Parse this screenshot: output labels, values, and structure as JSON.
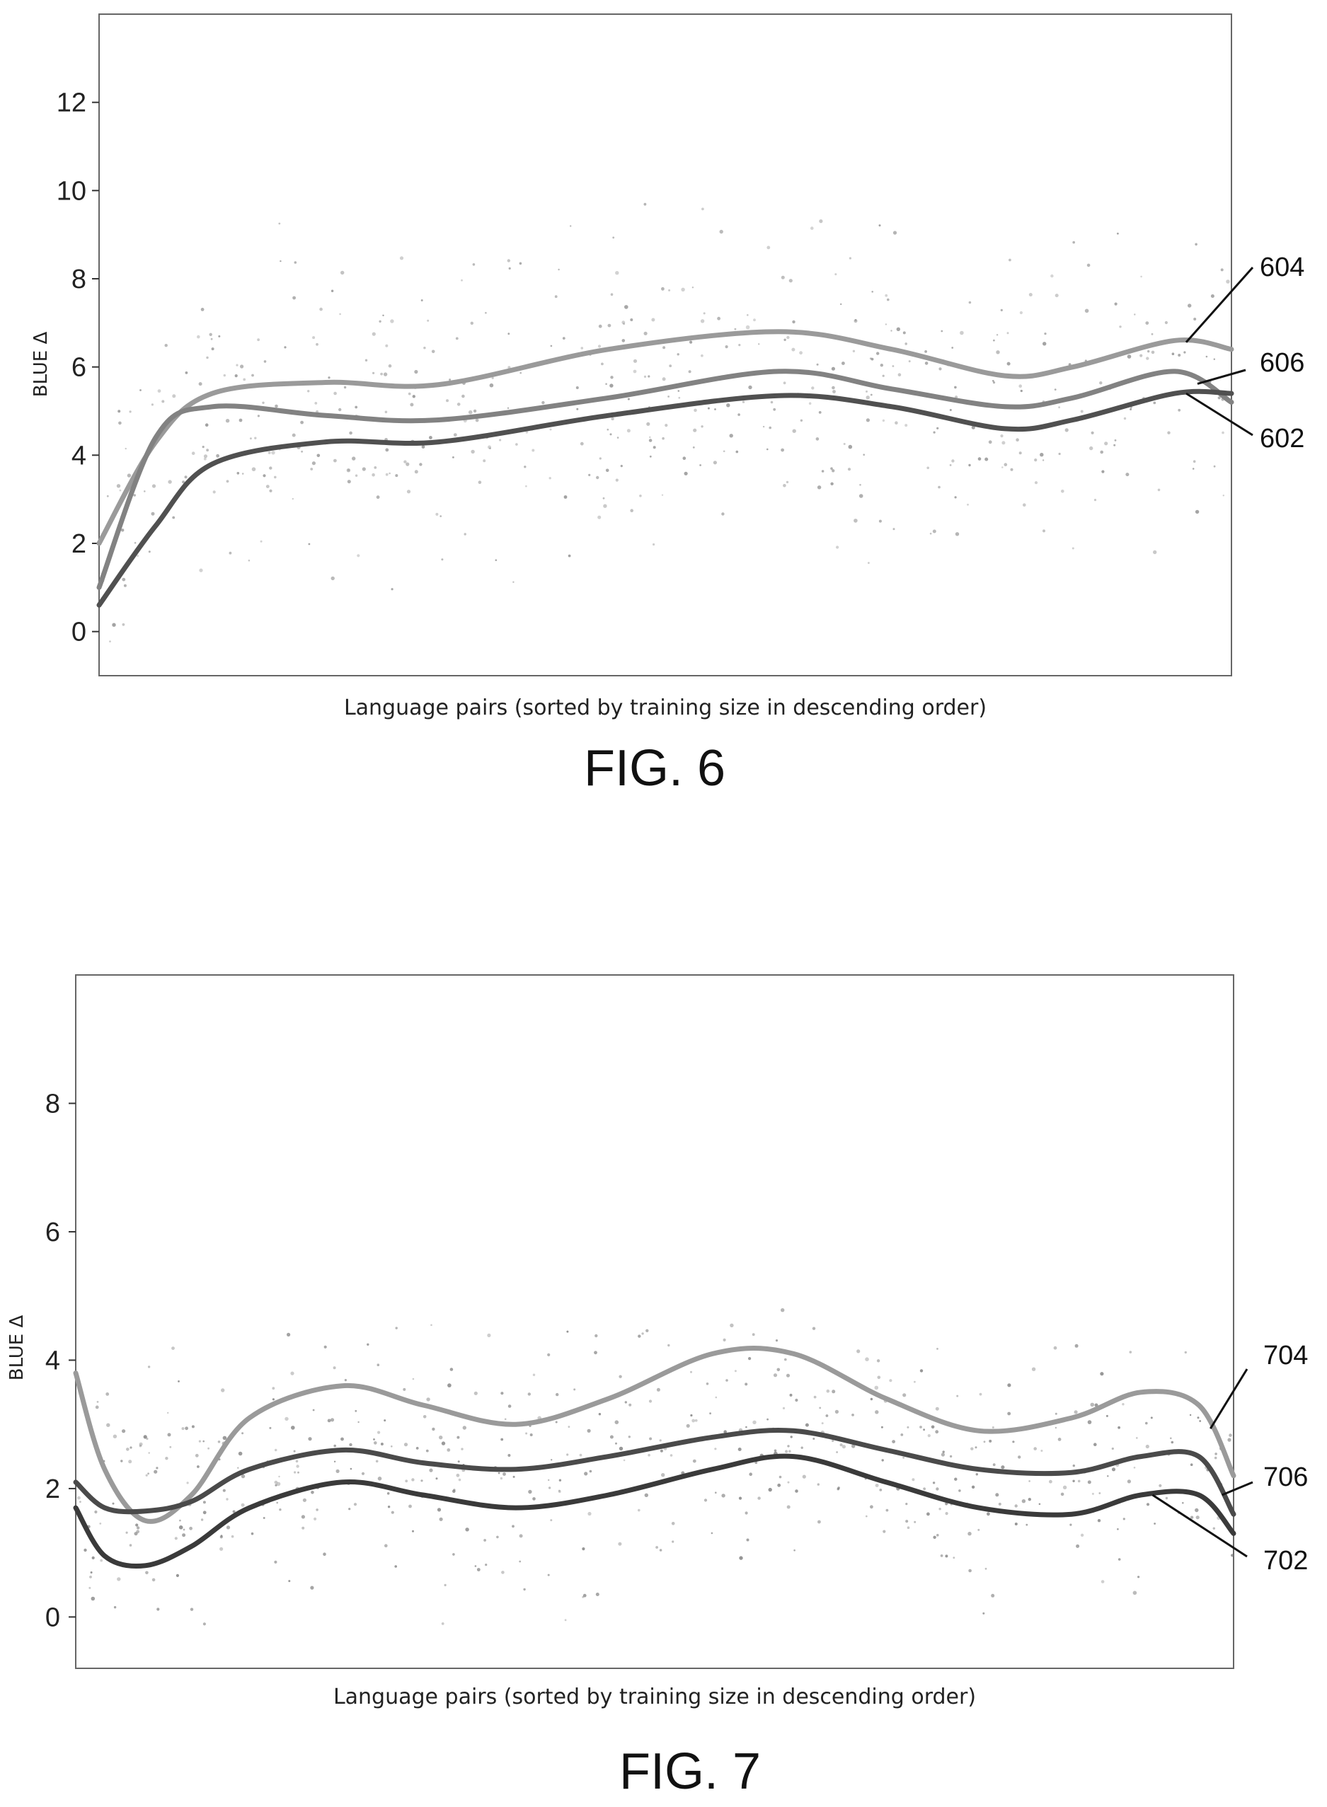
{
  "chart_data": [
    {
      "type": "scatter",
      "figure_label": "FIG. 6",
      "title": "",
      "xlabel": "Language pairs (sorted by training size in descending order)",
      "ylabel": "BLUE Δ",
      "ylim": [
        -1,
        14
      ],
      "y_ticks": [
        0,
        2,
        4,
        6,
        8,
        10,
        12
      ],
      "grid": false,
      "legend": "none",
      "series": [
        {
          "name": "604",
          "color": "#9a9a9a",
          "values": [
            [
              0,
              2.0
            ],
            [
              5,
              4.3
            ],
            [
              10,
              5.4
            ],
            [
              20,
              5.65
            ],
            [
              30,
              5.6
            ],
            [
              45,
              6.4
            ],
            [
              60,
              6.8
            ],
            [
              70,
              6.4
            ],
            [
              80,
              5.8
            ],
            [
              86,
              6.0
            ],
            [
              95,
              6.6
            ],
            [
              100,
              6.4
            ]
          ]
        },
        {
          "name": "606",
          "color": "#828282",
          "values": [
            [
              0,
              1.0
            ],
            [
              5,
              4.4
            ],
            [
              10,
              5.1
            ],
            [
              20,
              4.9
            ],
            [
              30,
              4.8
            ],
            [
              45,
              5.3
            ],
            [
              60,
              5.9
            ],
            [
              70,
              5.5
            ],
            [
              80,
              5.1
            ],
            [
              86,
              5.3
            ],
            [
              95,
              5.9
            ],
            [
              100,
              5.2
            ]
          ]
        },
        {
          "name": "602",
          "color": "#505050",
          "values": [
            [
              0,
              0.6
            ],
            [
              5,
              2.4
            ],
            [
              10,
              3.8
            ],
            [
              20,
              4.3
            ],
            [
              30,
              4.3
            ],
            [
              45,
              4.9
            ],
            [
              60,
              5.35
            ],
            [
              70,
              5.1
            ],
            [
              80,
              4.6
            ],
            [
              86,
              4.8
            ],
            [
              95,
              5.4
            ],
            [
              100,
              5.4
            ]
          ]
        }
      ]
    },
    {
      "type": "scatter",
      "figure_label": "FIG. 7",
      "title": "",
      "xlabel": "Language pairs (sorted by training size in descending order)",
      "ylabel": "BLUE Δ",
      "ylim": [
        -0.8,
        10
      ],
      "y_ticks": [
        0,
        2,
        4,
        6,
        8
      ],
      "grid": false,
      "legend": "none",
      "series": [
        {
          "name": "704",
          "color": "#9a9a9a",
          "values": [
            [
              0,
              3.8
            ],
            [
              2.5,
              2.3
            ],
            [
              6,
              1.5
            ],
            [
              10,
              1.9
            ],
            [
              15,
              3.1
            ],
            [
              23,
              3.6
            ],
            [
              30,
              3.3
            ],
            [
              38,
              3.0
            ],
            [
              46,
              3.4
            ],
            [
              55,
              4.1
            ],
            [
              62,
              4.1
            ],
            [
              70,
              3.4
            ],
            [
              78,
              2.9
            ],
            [
              86,
              3.1
            ],
            [
              92,
              3.5
            ],
            [
              97,
              3.3
            ],
            [
              100,
              2.2
            ]
          ]
        },
        {
          "name": "706",
          "color": "#4a4a4a",
          "values": [
            [
              0,
              2.1
            ],
            [
              2.5,
              1.7
            ],
            [
              6,
              1.65
            ],
            [
              10,
              1.8
            ],
            [
              15,
              2.3
            ],
            [
              23,
              2.6
            ],
            [
              30,
              2.4
            ],
            [
              38,
              2.3
            ],
            [
              46,
              2.5
            ],
            [
              55,
              2.8
            ],
            [
              62,
              2.9
            ],
            [
              70,
              2.6
            ],
            [
              78,
              2.3
            ],
            [
              86,
              2.25
            ],
            [
              92,
              2.5
            ],
            [
              97,
              2.5
            ],
            [
              100,
              1.6
            ]
          ]
        },
        {
          "name": "702",
          "color": "#3a3a3a",
          "values": [
            [
              0,
              1.7
            ],
            [
              2.5,
              0.95
            ],
            [
              6,
              0.8
            ],
            [
              10,
              1.1
            ],
            [
              15,
              1.7
            ],
            [
              23,
              2.1
            ],
            [
              30,
              1.9
            ],
            [
              38,
              1.7
            ],
            [
              46,
              1.9
            ],
            [
              55,
              2.3
            ],
            [
              62,
              2.5
            ],
            [
              70,
              2.1
            ],
            [
              78,
              1.7
            ],
            [
              86,
              1.6
            ],
            [
              92,
              1.9
            ],
            [
              97,
              1.9
            ],
            [
              100,
              1.3
            ]
          ]
        }
      ]
    }
  ]
}
